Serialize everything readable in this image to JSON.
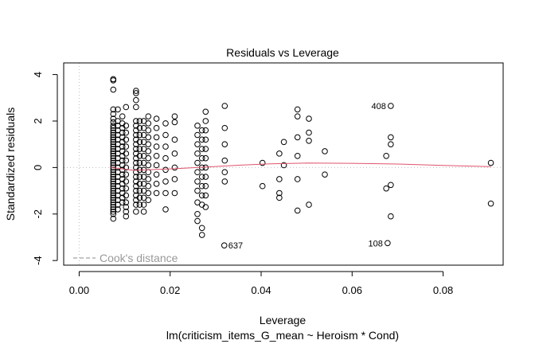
{
  "colors": {
    "smoother": "#df536b",
    "reference": "#bebebe",
    "cooks": "#888888",
    "points": "#000000"
  },
  "chart_data": {
    "type": "scatter",
    "title": "Residuals vs Leverage",
    "xlabel": "Leverage",
    "subtitle": "lm(criticism_items_G_mean ~ Heroism * Cond)",
    "ylabel": "Standardized residuals",
    "xlim": [
      -0.0034,
      0.0932
    ],
    "ylim": [
      -4.2,
      4.5
    ],
    "x_ticks": [
      "0.00",
      "0.02",
      "0.04",
      "0.06",
      "0.08"
    ],
    "y_ticks": [
      "-4",
      "-2",
      "0",
      "2",
      "4"
    ],
    "reference_lines": {
      "h": 0,
      "v": 0
    },
    "legend": {
      "position": "bottom-left",
      "label": "Cook's distance"
    },
    "labeled_points": [
      {
        "label": "408",
        "x": 0.0685,
        "y": 2.65
      },
      {
        "label": "637",
        "x": 0.0319,
        "y": -3.35
      },
      {
        "label": "108",
        "x": 0.0678,
        "y": -3.25
      }
    ],
    "smoother": {
      "x": [
        0.007,
        0.012,
        0.02,
        0.028,
        0.035,
        0.042,
        0.05,
        0.06,
        0.07,
        0.08,
        0.0905
      ],
      "y": [
        0.0,
        -0.12,
        -0.06,
        0.02,
        0.1,
        0.16,
        0.19,
        0.18,
        0.15,
        0.09,
        0.04
      ]
    },
    "clusters": [
      {
        "x": 0.0075,
        "ys": [
          3.75,
          3.8,
          3.35,
          2.5,
          2.3,
          2.1,
          1.95,
          1.8,
          1.7,
          1.6,
          1.5,
          1.4,
          1.3,
          1.2,
          1.1,
          1.0,
          0.9,
          0.8,
          0.7,
          0.6,
          0.5,
          0.4,
          0.3,
          0.2,
          0.1,
          0.0,
          -0.1,
          -0.2,
          -0.3,
          -0.4,
          -0.5,
          -0.6,
          -0.7,
          -0.8,
          -0.9,
          -1.0,
          -1.1,
          -1.2,
          -1.3,
          -1.4,
          -1.5,
          -1.6,
          -1.7,
          -1.8,
          -1.9,
          -2.0,
          -2.2
        ]
      },
      {
        "x": 0.0085,
        "ys": [
          2.5,
          2.0,
          1.8,
          1.6,
          1.4,
          1.2,
          1.0,
          0.8,
          0.6,
          0.4,
          0.2,
          0.0,
          -0.2,
          -0.4,
          -0.6,
          -0.8,
          -1.0,
          -1.2,
          -1.4,
          -1.6,
          -1.8
        ]
      },
      {
        "x": 0.0095,
        "ys": [
          2.2,
          1.9,
          1.7,
          1.5,
          1.3,
          1.1,
          0.9,
          0.7,
          0.5,
          0.3,
          0.1,
          -0.1,
          -0.3,
          -0.5,
          -0.7,
          -0.9,
          -1.1,
          -1.3,
          -1.5
        ]
      },
      {
        "x": 0.0103,
        "ys": [
          2.6,
          1.8,
          1.5,
          1.2,
          0.9,
          0.6,
          0.3,
          0.0,
          -0.3,
          -0.6,
          -0.9,
          -1.2,
          -1.5,
          -1.7,
          -1.9,
          -2.1
        ]
      },
      {
        "x": 0.0125,
        "ys": [
          3.3,
          3.2,
          2.9,
          2.6,
          2.0,
          1.8,
          1.6,
          1.4,
          1.2,
          1.0,
          0.8,
          0.6,
          0.4,
          0.2,
          0.0,
          -0.2,
          -0.4,
          -0.6,
          -0.8,
          -1.0,
          -1.2,
          -1.4,
          -1.6,
          -1.9
        ]
      },
      {
        "x": 0.0133,
        "ys": [
          2.0,
          1.7,
          1.4,
          1.1,
          0.8,
          0.5,
          0.2,
          -0.1,
          -0.4,
          -0.7,
          -1.0,
          -1.3,
          -1.6
        ]
      },
      {
        "x": 0.0142,
        "ys": [
          2.0,
          1.7,
          1.4,
          1.1,
          0.8,
          0.5,
          0.2,
          -0.1,
          -0.4,
          -0.7,
          -1.0,
          -1.3,
          -1.6,
          -1.9
        ]
      },
      {
        "x": 0.0152,
        "ys": [
          2.2,
          1.9,
          1.6,
          1.3,
          1.0,
          0.7,
          0.4,
          0.1,
          -0.2,
          -0.5,
          -0.8,
          -1.1,
          -1.4
        ]
      },
      {
        "x": 0.017,
        "ys": [
          2.1,
          1.7,
          1.3,
          0.9,
          0.5,
          0.1,
          -0.3,
          -0.7,
          -1.1
        ]
      },
      {
        "x": 0.019,
        "ys": [
          1.9,
          1.4,
          0.9,
          0.4,
          -0.1,
          -0.6,
          -1.1,
          -1.8
        ]
      },
      {
        "x": 0.021,
        "ys": [
          2.2,
          1.95,
          1.2,
          0.6,
          0.0,
          -0.5,
          -1.1
        ]
      },
      {
        "x": 0.026,
        "ys": [
          1.8,
          1.4,
          1.0,
          0.6,
          0.2,
          -0.2,
          -0.6,
          -1.0,
          -1.5,
          -2.0,
          -2.3
        ]
      },
      {
        "x": 0.027,
        "ys": [
          1.6,
          1.2,
          0.8,
          0.4,
          0.0,
          -0.4,
          -0.8,
          -1.2,
          -1.6,
          -2.6,
          -2.9
        ]
      },
      {
        "x": 0.0278,
        "ys": [
          2.4,
          2.0,
          1.6,
          1.2,
          0.8,
          0.4,
          0.0,
          -0.4,
          -0.8,
          -1.2,
          -1.7
        ]
      },
      {
        "x": 0.032,
        "ys": [
          2.65,
          1.7,
          1.0,
          0.3,
          -0.2,
          -0.6
        ]
      },
      {
        "x": 0.0403,
        "ys": [
          0.2,
          -0.8
        ]
      },
      {
        "x": 0.044,
        "ys": [
          0.6,
          -0.5,
          -1.1,
          -1.3
        ]
      },
      {
        "x": 0.045,
        "ys": [
          1.1,
          0.1
        ]
      },
      {
        "x": 0.048,
        "ys": [
          2.5,
          2.2,
          1.3,
          0.5,
          -0.5,
          -1.85
        ]
      },
      {
        "x": 0.0505,
        "ys": [
          2.1,
          1.5,
          1.15,
          -1.6
        ]
      },
      {
        "x": 0.054,
        "ys": [
          0.7,
          -0.3
        ]
      },
      {
        "x": 0.0675,
        "ys": [
          0.5,
          -0.9
        ]
      },
      {
        "x": 0.0685,
        "ys": [
          1.3,
          1.0,
          -0.75,
          -2.1
        ]
      },
      {
        "x": 0.0905,
        "ys": [
          0.2,
          -1.55
        ]
      }
    ]
  }
}
